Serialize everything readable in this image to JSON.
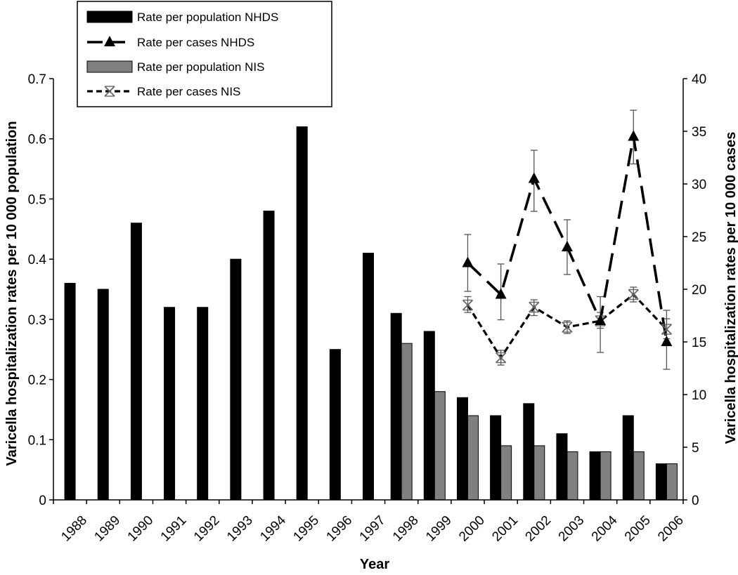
{
  "chart_data": {
    "type": "bar",
    "xlabel": "Year",
    "ylabel_left": "Varicella hospitalization rates per 10 000 population",
    "ylabel_right": "Varicella hospitalization rates per 10 000 cases",
    "categories": [
      "1988",
      "1989",
      "1990",
      "1991",
      "1992",
      "1993",
      "1994",
      "1995",
      "1996",
      "1997",
      "1998",
      "1999",
      "2000",
      "2001",
      "2002",
      "2003",
      "2004",
      "2005",
      "2006"
    ],
    "ylim_left": [
      0,
      0.7
    ],
    "yticks_left": [
      "0",
      "0.1",
      "0.2",
      "0.3",
      "0.4",
      "0.5",
      "0.6",
      "0.7"
    ],
    "ylim_right": [
      0,
      40
    ],
    "yticks_right": [
      "0",
      "5",
      "10",
      "15",
      "20",
      "25",
      "30",
      "35",
      "40"
    ],
    "grid": false,
    "legend_position": "top-left",
    "series": [
      {
        "name": "Rate per population NHDS",
        "type": "bar",
        "axis": "left",
        "color": "#000000",
        "values": [
          0.36,
          0.35,
          0.46,
          0.32,
          0.32,
          0.4,
          0.48,
          0.62,
          0.25,
          0.41,
          0.31,
          0.28,
          0.17,
          0.14,
          0.16,
          0.11,
          0.08,
          0.14,
          0.06
        ]
      },
      {
        "name": "Rate per population NIS",
        "type": "bar",
        "axis": "left",
        "color": "#808080",
        "values": [
          null,
          null,
          null,
          null,
          null,
          null,
          null,
          null,
          null,
          null,
          0.26,
          0.18,
          0.14,
          0.09,
          0.09,
          0.08,
          0.08,
          0.08,
          0.06
        ]
      },
      {
        "name": "Rate per cases NHDS",
        "type": "line",
        "axis": "right",
        "marker": "triangle",
        "dash": "long",
        "values": [
          null,
          null,
          null,
          null,
          null,
          null,
          null,
          null,
          null,
          null,
          null,
          null,
          22.5,
          19.5,
          30.5,
          24,
          17,
          34.5,
          15
        ],
        "error_low": [
          null,
          null,
          null,
          null,
          null,
          null,
          null,
          null,
          null,
          null,
          null,
          null,
          19.8,
          17.1,
          27.4,
          21.4,
          14.0,
          31.9,
          12.4
        ],
        "error_high": [
          null,
          null,
          null,
          null,
          null,
          null,
          null,
          null,
          null,
          null,
          null,
          null,
          25.2,
          22.4,
          33.2,
          26.6,
          19.3,
          37.0,
          18.0
        ]
      },
      {
        "name": "Rate per cases NIS",
        "type": "line",
        "axis": "right",
        "marker": "x",
        "dash": "short",
        "values": [
          null,
          null,
          null,
          null,
          null,
          null,
          null,
          null,
          null,
          null,
          null,
          null,
          18.5,
          13.5,
          18.3,
          16.4,
          17.0,
          19.5,
          16.2
        ],
        "error_low": [
          null,
          null,
          null,
          null,
          null,
          null,
          null,
          null,
          null,
          null,
          null,
          null,
          17.8,
          12.8,
          17.5,
          15.8,
          16.3,
          18.8,
          15.3
        ],
        "error_high": [
          null,
          null,
          null,
          null,
          null,
          null,
          null,
          null,
          null,
          null,
          null,
          null,
          19.3,
          14.2,
          19.0,
          17.0,
          17.8,
          20.2,
          17.2
        ]
      }
    ],
    "legend": [
      {
        "label": "Rate per population NHDS",
        "series": 0
      },
      {
        "label": "Rate per cases NHDS",
        "series": 2
      },
      {
        "label": "Rate per population NIS",
        "series": 1
      },
      {
        "label": "Rate per cases NIS",
        "series": 3
      }
    ]
  }
}
